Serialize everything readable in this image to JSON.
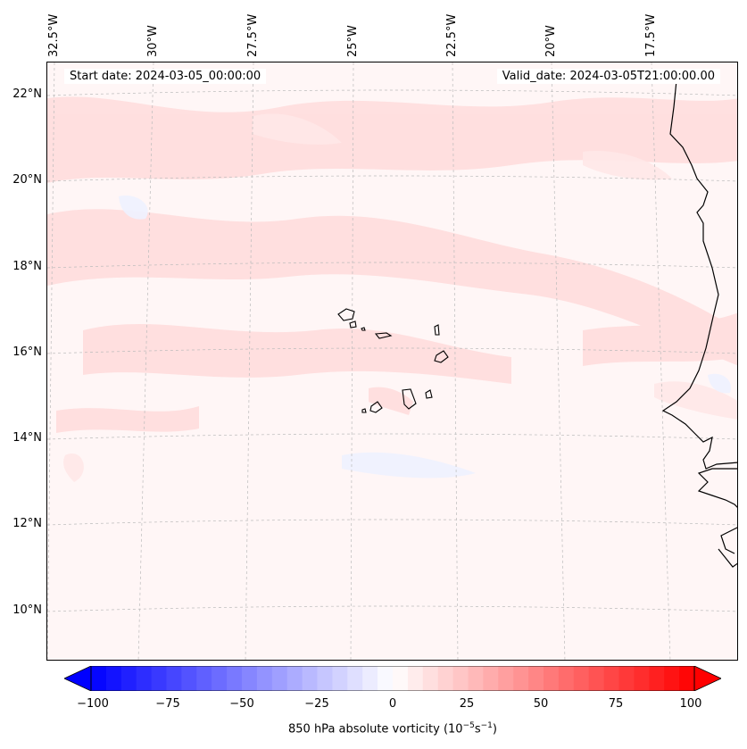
{
  "header": {
    "start_date": "Start date: 2024-03-05_00:00:00",
    "valid_date": "Valid_date: 2024-03-05T21:00:00.00"
  },
  "axes": {
    "lon_labels": [
      "32.5°W",
      "30°W",
      "27.5°W",
      "25°W",
      "22.5°W",
      "20°W",
      "17.5°W"
    ],
    "lat_labels": [
      "22°N",
      "20°N",
      "18°N",
      "16°N",
      "14°N",
      "12°N",
      "10°N"
    ]
  },
  "colorbar": {
    "ticks": [
      "−100",
      "−75",
      "−50",
      "−25",
      "0",
      "25",
      "50",
      "75",
      "100"
    ],
    "label": "850 hPa absolute vorticity (10",
    "label_exp1": "−5",
    "label_mid": "s",
    "label_exp2": "−1",
    "label_end": ")",
    "min": -100,
    "max": 100,
    "step": 5,
    "min_color": "#0000ff",
    "mid_color": "#ffffff",
    "max_color": "#ff0000"
  },
  "colors": {
    "land_outline": "#000000",
    "grid": "#bbbbbb",
    "positive_field": "#ffd6d6",
    "negative_field": "#eef2ff"
  }
}
